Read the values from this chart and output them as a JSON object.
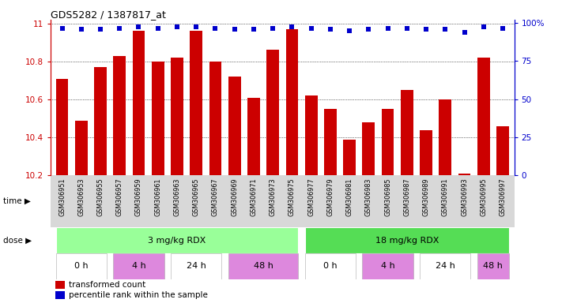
{
  "title": "GDS5282 / 1387817_at",
  "samples": [
    "GSM306951",
    "GSM306953",
    "GSM306955",
    "GSM306957",
    "GSM306959",
    "GSM306961",
    "GSM306963",
    "GSM306965",
    "GSM306967",
    "GSM306969",
    "GSM306971",
    "GSM306973",
    "GSM306975",
    "GSM306977",
    "GSM306979",
    "GSM306981",
    "GSM306983",
    "GSM306985",
    "GSM306987",
    "GSM306989",
    "GSM306991",
    "GSM306993",
    "GSM306995",
    "GSM306997"
  ],
  "bar_values": [
    10.71,
    10.49,
    10.77,
    10.83,
    10.96,
    10.8,
    10.82,
    10.96,
    10.8,
    10.72,
    10.61,
    10.86,
    10.97,
    10.62,
    10.55,
    10.39,
    10.48,
    10.55,
    10.65,
    10.44,
    10.6,
    10.21,
    10.82,
    10.46
  ],
  "percentile_values": [
    97,
    96,
    96,
    97,
    98,
    97,
    98,
    98,
    97,
    96,
    96,
    97,
    98,
    97,
    96,
    95,
    96,
    97,
    97,
    96,
    96,
    94,
    98,
    97
  ],
  "bar_color": "#cc0000",
  "dot_color": "#0000cc",
  "ymin": 10.2,
  "ymax": 11.0,
  "yticks": [
    10.2,
    10.4,
    10.6,
    10.8,
    11.0
  ],
  "y2ticks": [
    0,
    25,
    50,
    75,
    100
  ],
  "dose_segments": [
    {
      "text": "3 mg/kg RDX",
      "start": 0,
      "end": 12,
      "color": "#99ff99"
    },
    {
      "text": "18 mg/kg RDX",
      "start": 13,
      "end": 23,
      "color": "#55dd55"
    }
  ],
  "time_segments": [
    {
      "text": "0 h",
      "start": 0,
      "end": 2,
      "color": "#ffffff"
    },
    {
      "text": "4 h",
      "start": 3,
      "end": 5,
      "color": "#dd88dd"
    },
    {
      "text": "24 h",
      "start": 6,
      "end": 8,
      "color": "#ffffff"
    },
    {
      "text": "48 h",
      "start": 9,
      "end": 12,
      "color": "#dd88dd"
    },
    {
      "text": "0 h",
      "start": 13,
      "end": 15,
      "color": "#ffffff"
    },
    {
      "text": "4 h",
      "start": 16,
      "end": 18,
      "color": "#dd88dd"
    },
    {
      "text": "24 h",
      "start": 19,
      "end": 21,
      "color": "#ffffff"
    },
    {
      "text": "48 h",
      "start": 22,
      "end": 23,
      "color": "#dd88dd"
    }
  ],
  "legend_bar_label": "transformed count",
  "legend_dot_label": "percentile rank within the sample",
  "red_axis_color": "#cc0000",
  "blue_axis_color": "#0000cc",
  "gray_bg": "#d8d8d8",
  "plot_bg": "#ffffff"
}
